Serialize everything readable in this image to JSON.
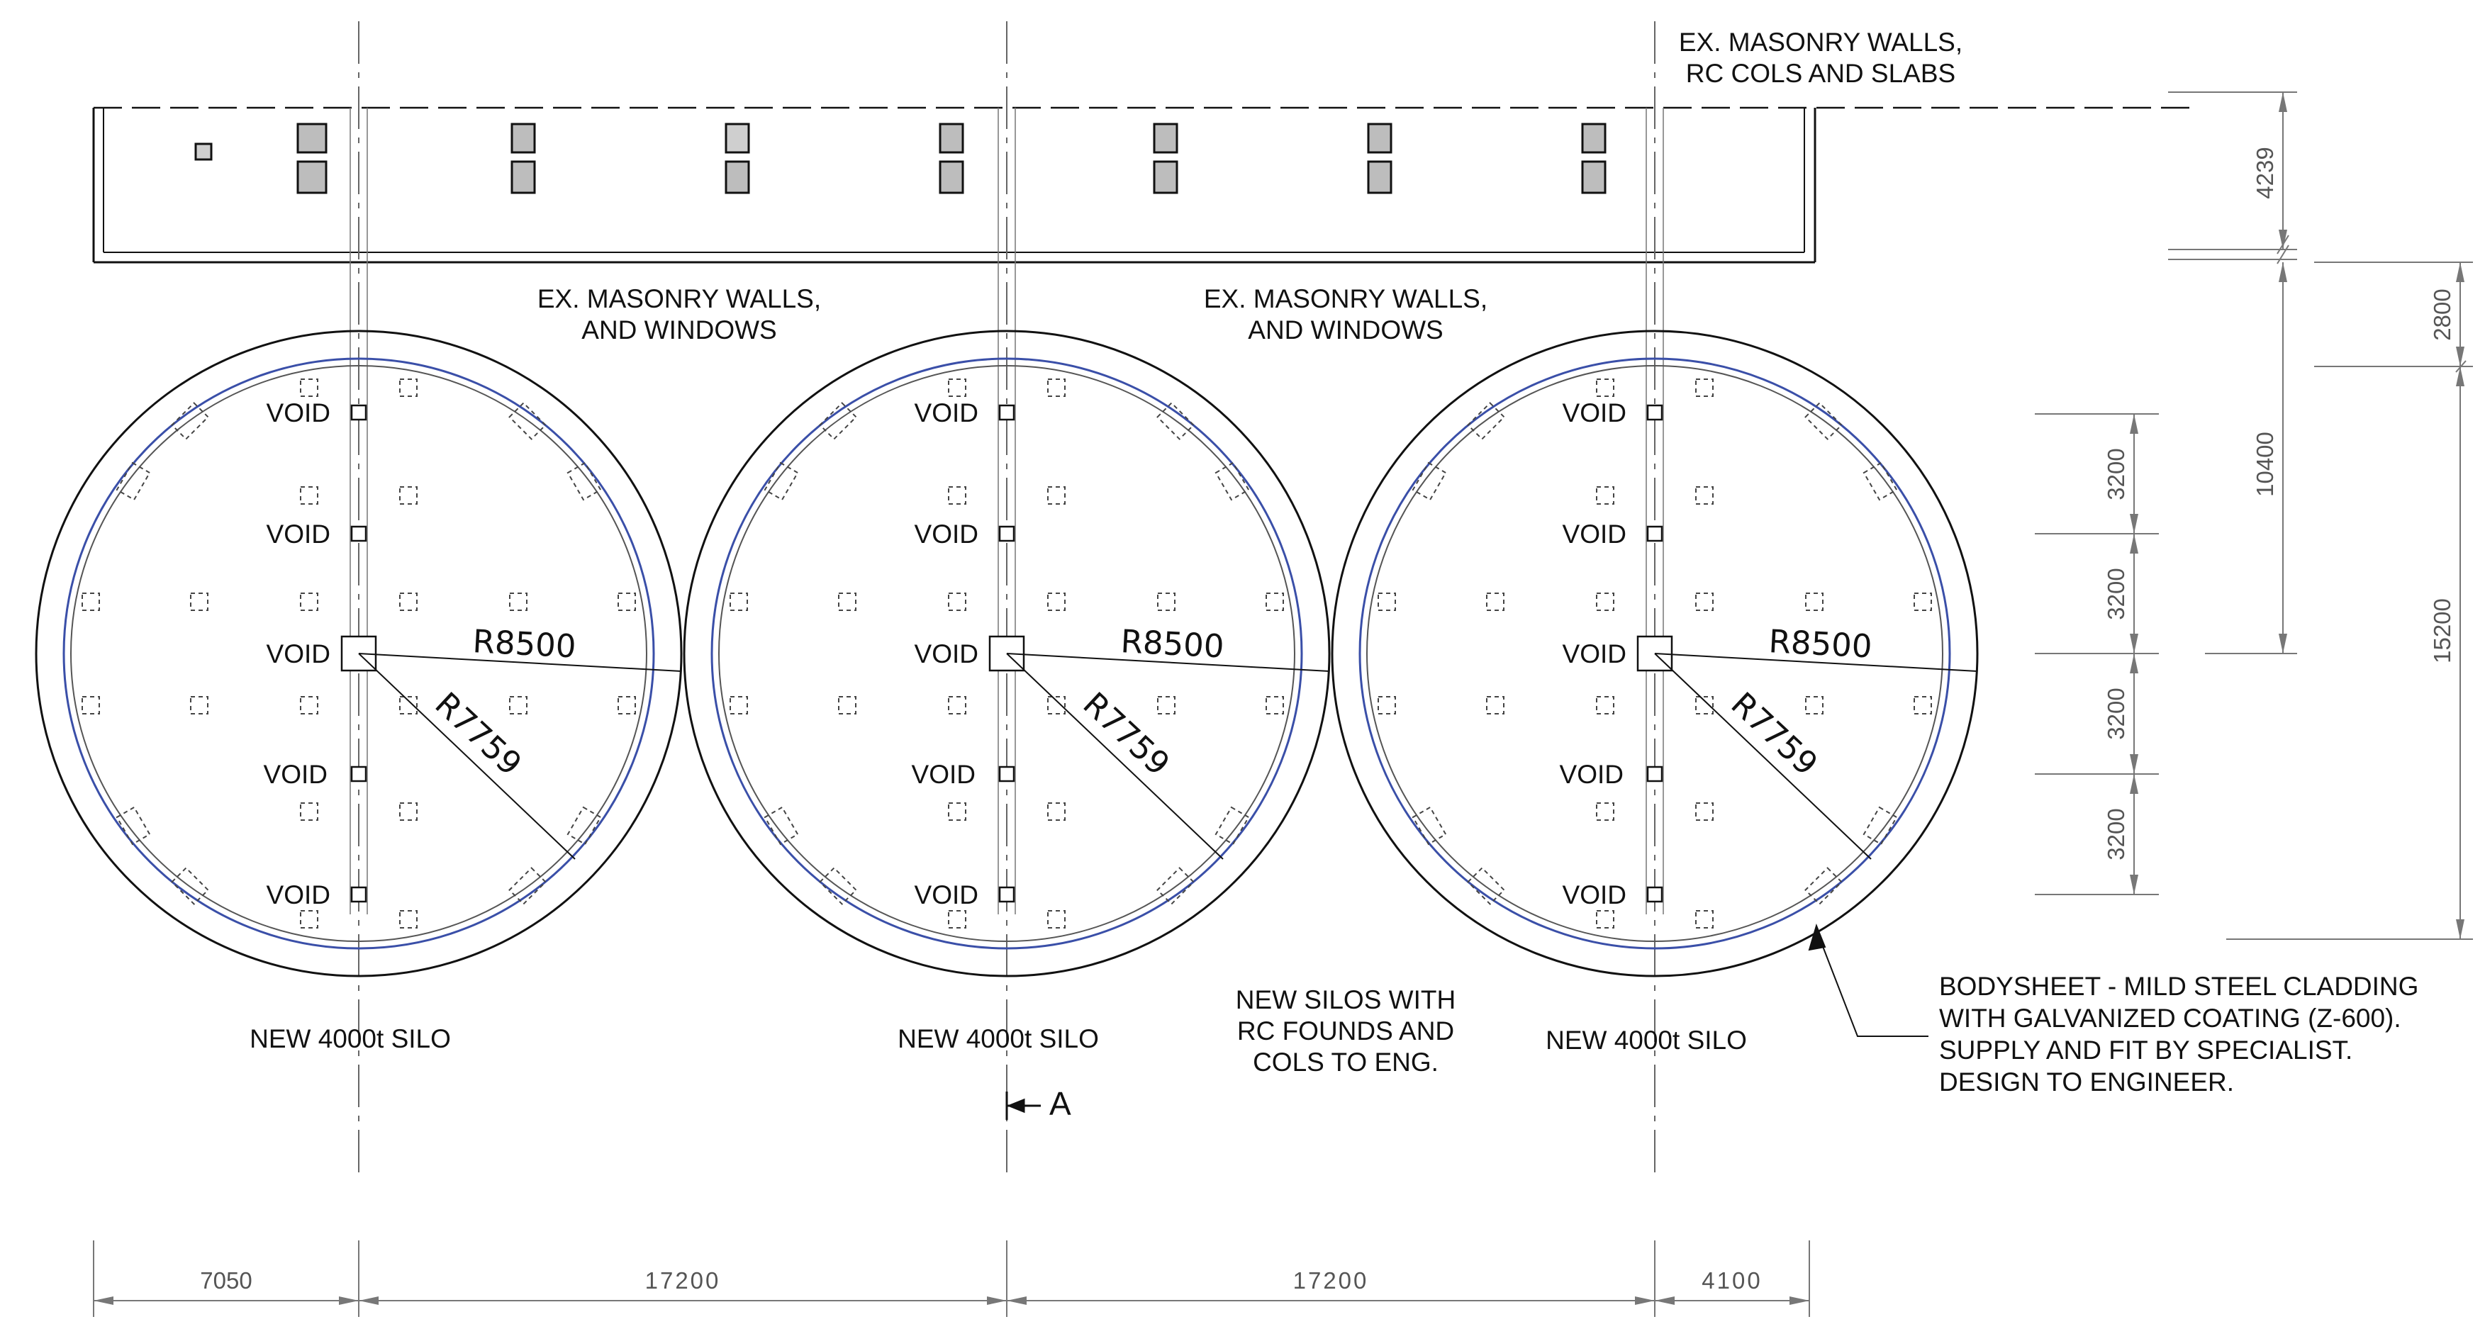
{
  "notes": {
    "top_right": [
      "EX. MASONRY WALLS,",
      "RC COLS AND SLABS"
    ],
    "walls_left": [
      "EX. MASONRY WALLS,",
      "AND WINDOWS"
    ],
    "walls_right": [
      "EX. MASONRY WALLS,",
      "AND WINDOWS"
    ],
    "new_silos": [
      "NEW SILOS WITH",
      "RC FOUNDS AND",
      "COLS TO ENG."
    ],
    "bodysheet": [
      "BODYSHEET - MILD STEEL CLADDING",
      "WITH GALVANIZED COATING (Z-600).",
      "SUPPLY AND FIT BY SPECIALIST.",
      "DESIGN TO ENGINEER."
    ],
    "section_marker": "A"
  },
  "silos": [
    {
      "label": "NEW 4000t SILO",
      "outer_radius": "R8500",
      "inner_radius": "R7759",
      "voids": [
        "VOID",
        "VOID",
        "VOID",
        "VOID",
        "VOID"
      ]
    },
    {
      "label": "NEW 4000t SILO",
      "outer_radius": "R8500",
      "inner_radius": "R7759",
      "voids": [
        "VOID",
        "VOID",
        "VOID",
        "VOID",
        "VOID"
      ]
    },
    {
      "label": "NEW 4000t SILO",
      "outer_radius": "R8500",
      "inner_radius": "R7759",
      "voids": [
        "VOID",
        "VOID",
        "VOID",
        "VOID",
        "VOID"
      ]
    }
  ],
  "dimensions": {
    "bottom": [
      "7050",
      "17200",
      "17200",
      "4100"
    ],
    "right_col_a": [
      "3200",
      "3200",
      "3200",
      "3200"
    ],
    "right_col_b": [
      "4239",
      "10400"
    ],
    "right_col_c": [
      "2800",
      "15200"
    ]
  },
  "colors": {
    "line": "#111111",
    "cladding": "#3a4fa8",
    "dim": "#777777",
    "column_fill": "#bdbdbd"
  }
}
